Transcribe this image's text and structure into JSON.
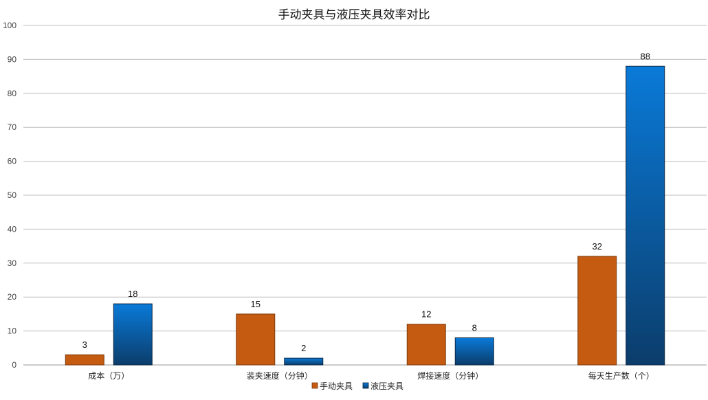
{
  "chart_data": {
    "type": "bar",
    "title": "手动夹具与液压夹具效率对比",
    "xlabel": "",
    "ylabel": "",
    "categories": [
      "成本（万）",
      "装夹速度（分钟）",
      "焊接速度（分钟）",
      "每天生产数（个）"
    ],
    "series": [
      {
        "name": "手动夹具",
        "values": [
          3,
          15,
          12,
          32
        ],
        "color": "#c55a11"
      },
      {
        "name": "液压夹具",
        "values": [
          18,
          2,
          8,
          88
        ],
        "color": "#0a79d6",
        "color_dark": "#0b3d6b"
      }
    ],
    "ylim": [
      0,
      100
    ],
    "yticks": [
      0,
      10,
      20,
      30,
      40,
      50,
      60,
      70,
      80,
      90,
      100
    ],
    "grid": true,
    "legend_position": "bottom"
  }
}
